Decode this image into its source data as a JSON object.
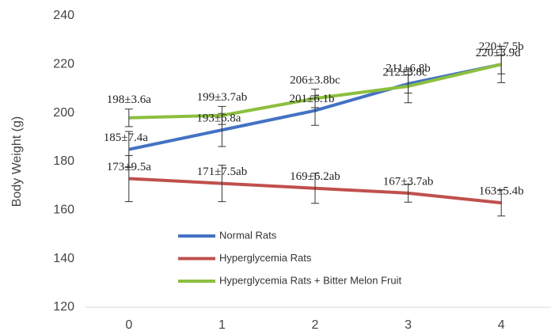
{
  "chart_data": {
    "type": "line",
    "y_label": "Body Weight (g)",
    "categories": [
      "0",
      "1",
      "2",
      "3",
      "4"
    ],
    "series": [
      {
        "name": "Normal Rats",
        "color": "#4472c4",
        "values": [
          185,
          193,
          201,
          212,
          220
        ],
        "errors": [
          7.4,
          6.8,
          6.1,
          3.8,
          3.9
        ],
        "value_labels": [
          "185±7.4a",
          "193±6.8a",
          "201±6.1b",
          "212±3.8c",
          "220±3.9d"
        ]
      },
      {
        "name": "Hyperglycemia Rats",
        "color": "#c0504d",
        "values": [
          173,
          171,
          169,
          167,
          163
        ],
        "errors": [
          9.5,
          7.5,
          6.2,
          3.7,
          5.4
        ],
        "value_labels": [
          "173±9.5a",
          "171±7.5ab",
          "169±6.2ab",
          "167±3.7ab",
          "163±5.4b"
        ]
      },
      {
        "name": "Hyperglycemia Rats + Bitter Melon Fruit",
        "color": "#8cbf3f",
        "values": [
          198,
          199,
          206,
          211,
          220
        ],
        "errors": [
          3.6,
          3.7,
          3.8,
          6.8,
          7.5
        ],
        "value_labels": [
          "198±3.6a",
          "199±3.7ab",
          "206±3.8bc",
          "211±6.8b",
          "220±7.5b"
        ]
      }
    ],
    "ylim": [
      120,
      240
    ],
    "yticks": [
      120,
      140,
      160,
      180,
      200,
      220,
      240
    ],
    "legend": "lower-center"
  }
}
